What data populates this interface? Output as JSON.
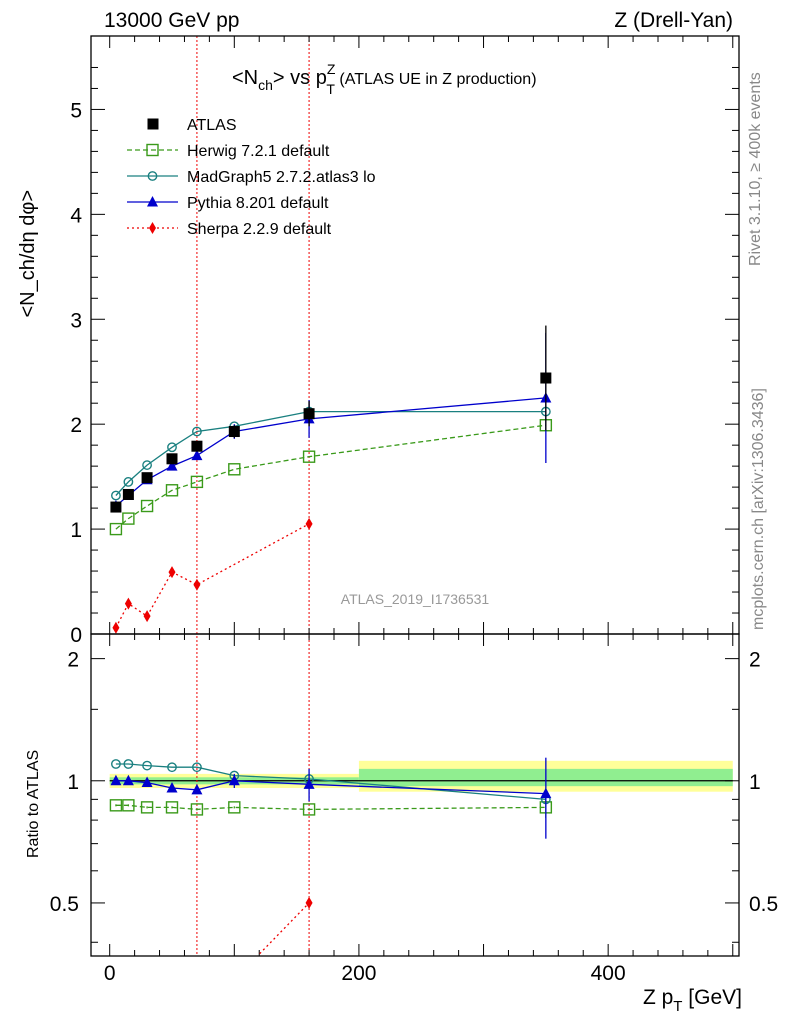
{
  "header": {
    "energy": "13000 GeV pp",
    "process": "Z (Drell-Yan)",
    "title_main": "<N",
    "title_sub1": "ch",
    "title_mid": "> vs p",
    "title_sup": "Z",
    "title_sub2": "T",
    "title_tail": " (ATLAS UE in Z production)"
  },
  "side": {
    "rivet": "Rivet 3.1.10, ≥ 400k events",
    "mcplots": "mcplots.cern.ch [arXiv:1306.3436]"
  },
  "watermark": "ATLAS_2019_I1736531",
  "axes": {
    "ylabel_top": "<N_ch/dη dφ>",
    "ylabel_bottom": "Ratio to ATLAS",
    "xlabel_main": "Z p",
    "xlabel_sub": "T",
    "xlabel_unit": " [GeV]"
  },
  "colors": {
    "atlas": "#000000",
    "herwig": "#3a9a1a",
    "madgraph": "#1a8080",
    "pythia": "#0000cc",
    "sherpa": "#ee0000",
    "band_inner": "#90ee90",
    "band_outer": "#ffff99"
  },
  "chart_data": [
    {
      "type": "line",
      "panel": "main",
      "xlim": [
        -15,
        505
      ],
      "ylim": [
        0,
        5.7
      ],
      "yticks": [
        0,
        1,
        2,
        3,
        4,
        5
      ],
      "grid": false,
      "legend_position": "top-left",
      "vlines": [
        70,
        160
      ],
      "series": [
        {
          "name": "ATLAS",
          "key": "atlas",
          "marker": "square-filled",
          "line": "none",
          "x": [
            5,
            15,
            30,
            50,
            70,
            100,
            160,
            350
          ],
          "y": [
            1.21,
            1.33,
            1.49,
            1.67,
            1.79,
            1.93,
            2.1,
            2.44
          ],
          "err": [
            0.02,
            0.02,
            0.03,
            0.03,
            0.04,
            0.06,
            0.12,
            0.5
          ]
        },
        {
          "name": "Herwig 7.2.1 default",
          "key": "herwig",
          "marker": "square-open",
          "line": "dashed",
          "x": [
            5,
            15,
            30,
            50,
            70,
            100,
            160,
            350
          ],
          "y": [
            1.0,
            1.1,
            1.22,
            1.37,
            1.45,
            1.57,
            1.69,
            1.99
          ]
        },
        {
          "name": "MadGraph5 2.7.2.atlas3 lo",
          "key": "madgraph",
          "marker": "circle-open",
          "line": "solid",
          "x": [
            5,
            15,
            30,
            50,
            70,
            100,
            160,
            350
          ],
          "y": [
            1.32,
            1.45,
            1.61,
            1.78,
            1.93,
            1.98,
            2.12,
            2.12
          ]
        },
        {
          "name": "Pythia 8.201 default",
          "key": "pythia",
          "marker": "triangle-filled",
          "line": "solid",
          "x": [
            5,
            15,
            30,
            50,
            70,
            100,
            160,
            350
          ],
          "y": [
            1.22,
            1.32,
            1.47,
            1.6,
            1.7,
            1.93,
            2.05,
            2.25
          ],
          "err": [
            0.02,
            0.02,
            0.02,
            0.03,
            0.04,
            0.07,
            0.18,
            0.62
          ]
        },
        {
          "name": "Sherpa 2.2.9 default",
          "key": "sherpa",
          "marker": "diamond-filled",
          "line": "dotted",
          "x": [
            5,
            15,
            30,
            50,
            70,
            160
          ],
          "y": [
            0.06,
            0.29,
            0.17,
            0.59,
            0.47,
            1.05
          ]
        }
      ]
    },
    {
      "type": "line",
      "panel": "ratio",
      "xlim": [
        -15,
        505
      ],
      "ylim": [
        0.37,
        2.3
      ],
      "yticks": [
        0.5,
        1,
        2
      ],
      "xticks": [
        0,
        200,
        400
      ],
      "reference": 1,
      "bands": [
        {
          "x": [
            0,
            200
          ],
          "inner": [
            0.98,
            1.02
          ],
          "outer": [
            0.96,
            1.04
          ]
        },
        {
          "x": [
            200,
            500
          ],
          "inner": [
            0.97,
            1.07
          ],
          "outer": [
            0.94,
            1.12
          ]
        }
      ],
      "series": [
        {
          "name": "Herwig 7.2.1 default",
          "key": "herwig",
          "marker": "square-open",
          "line": "dashed",
          "x": [
            5,
            15,
            30,
            50,
            70,
            100,
            160,
            350
          ],
          "y": [
            0.87,
            0.87,
            0.86,
            0.86,
            0.85,
            0.86,
            0.85,
            0.86
          ],
          "err": [
            0.005,
            0.005,
            0.005,
            0.005,
            0.005,
            0.005,
            0.005,
            0.05
          ]
        },
        {
          "name": "MadGraph5 2.7.2.atlas3 lo",
          "key": "madgraph",
          "marker": "circle-open",
          "line": "solid",
          "x": [
            5,
            15,
            30,
            50,
            70,
            100,
            160,
            350
          ],
          "y": [
            1.1,
            1.1,
            1.09,
            1.08,
            1.08,
            1.03,
            1.01,
            0.9
          ]
        },
        {
          "name": "Pythia 8.201 default",
          "key": "pythia",
          "marker": "triangle-filled",
          "line": "solid",
          "x": [
            5,
            15,
            30,
            50,
            70,
            100,
            160,
            350
          ],
          "y": [
            1.0,
            1.0,
            0.99,
            0.96,
            0.95,
            1.0,
            0.98,
            0.93
          ],
          "err": [
            0.01,
            0.01,
            0.01,
            0.01,
            0.015,
            0.04,
            0.09,
            0.21
          ]
        },
        {
          "name": "Sherpa 2.2.9 default",
          "key": "sherpa",
          "marker": "diamond-filled",
          "line": "dotted",
          "x": [
            70,
            160
          ],
          "y": [
            0.26,
            0.5
          ]
        }
      ]
    }
  ]
}
